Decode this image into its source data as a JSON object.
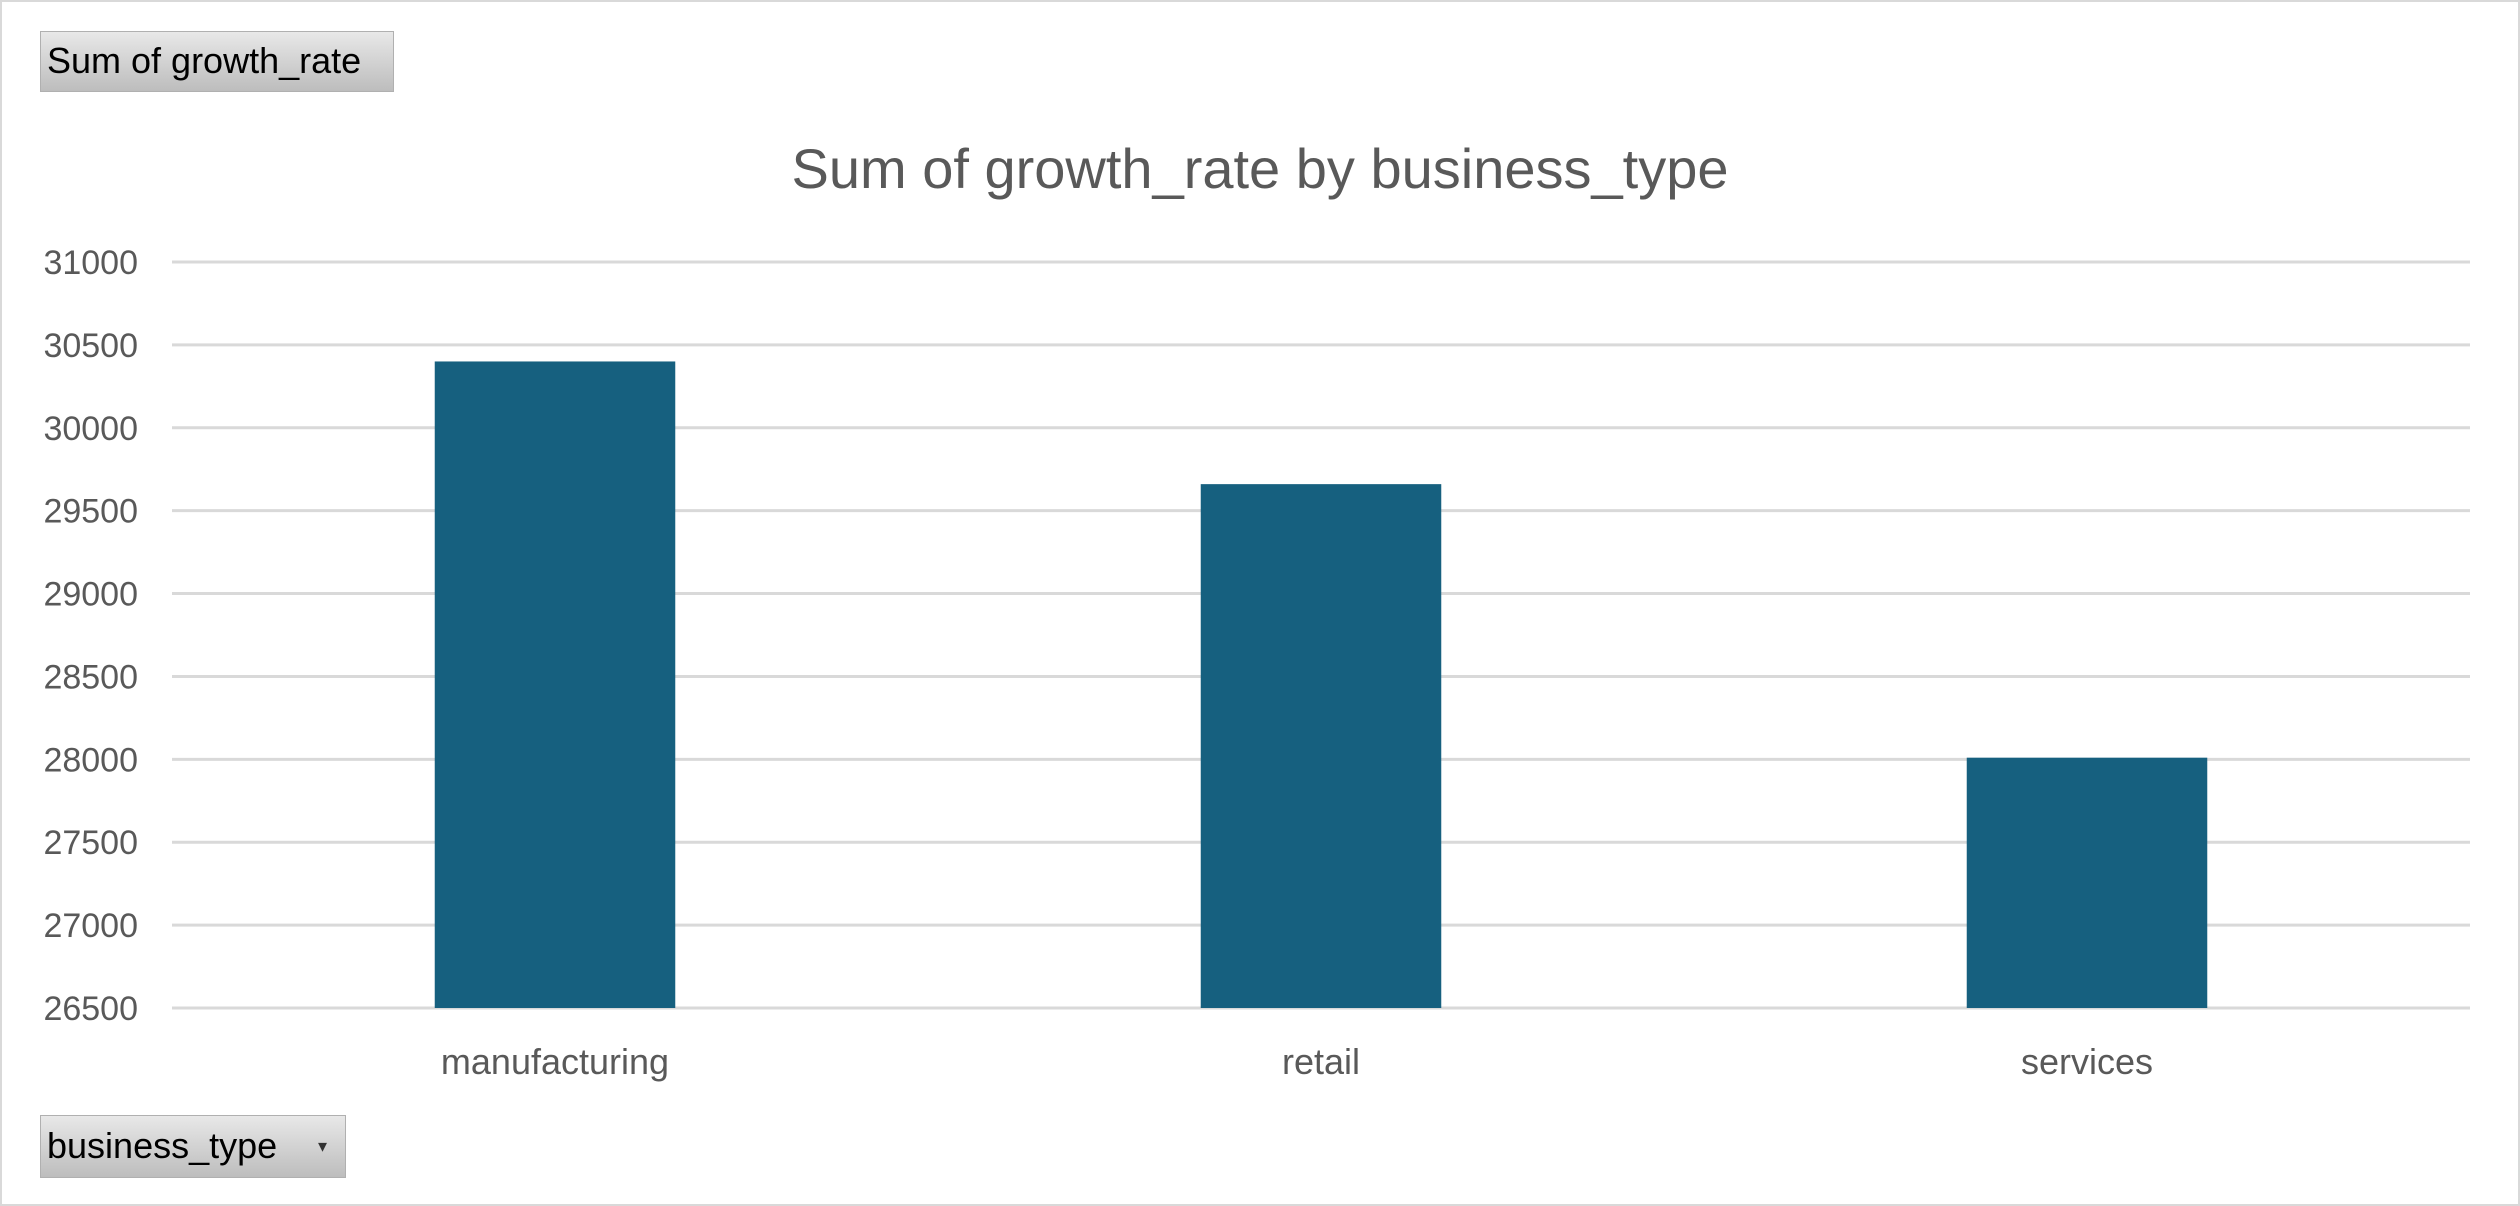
{
  "pivot": {
    "value_field": "Sum of growth_rate",
    "axis_field": "business_type",
    "dropdown_icon": "chevron-down-icon"
  },
  "chart_data": {
    "type": "bar",
    "title": "Sum of growth_rate by business_type",
    "categories": [
      "manufacturing",
      "retail",
      "services"
    ],
    "values": [
      30400,
      29660,
      28010
    ],
    "ylim": [
      26500,
      31000
    ],
    "yticks": [
      26500,
      27000,
      27500,
      28000,
      28500,
      29000,
      29500,
      30000,
      30500,
      31000
    ],
    "grid": true,
    "bar_color": "#16607F",
    "gridline_color": "#D9D9D9",
    "text_color": "#595959"
  }
}
